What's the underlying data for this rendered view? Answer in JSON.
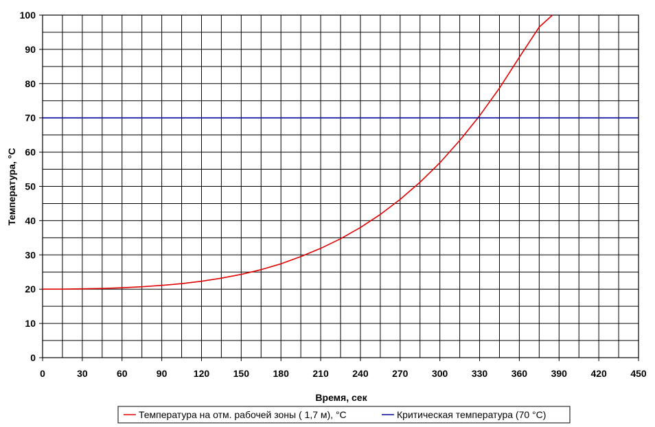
{
  "chart_data": {
    "type": "line",
    "title": "",
    "xlabel": "Время, сек",
    "ylabel": "Температура, °С",
    "xlim": [
      0,
      450
    ],
    "ylim": [
      0,
      100
    ],
    "xticks": [
      0,
      30,
      60,
      90,
      120,
      150,
      180,
      210,
      240,
      270,
      300,
      330,
      360,
      390,
      420,
      450
    ],
    "yticks": [
      0,
      10,
      20,
      30,
      40,
      50,
      60,
      70,
      80,
      90,
      100
    ],
    "grid": true,
    "legend_position": "bottom",
    "series": [
      {
        "name": "Температура на отм. рабочей зоны ( 1,7 м), °С",
        "color": "#e00000",
        "x": [
          0,
          15,
          30,
          45,
          60,
          75,
          90,
          105,
          120,
          135,
          150,
          165,
          180,
          195,
          210,
          225,
          240,
          255,
          270,
          285,
          300,
          315,
          330,
          345,
          360,
          375,
          385
        ],
        "y": [
          20,
          20,
          20.1,
          20.2,
          20.4,
          20.7,
          21.1,
          21.6,
          22.3,
          23.2,
          24.3,
          25.7,
          27.4,
          29.5,
          31.9,
          34.7,
          38.0,
          41.8,
          46.2,
          51.2,
          56.9,
          63.4,
          70.6,
          78.7,
          87.7,
          96.5,
          100
        ]
      },
      {
        "name": "Критическая температура (70 °С)",
        "color": "#00009c",
        "x": [
          0,
          450
        ],
        "y": [
          70,
          70
        ]
      }
    ]
  }
}
